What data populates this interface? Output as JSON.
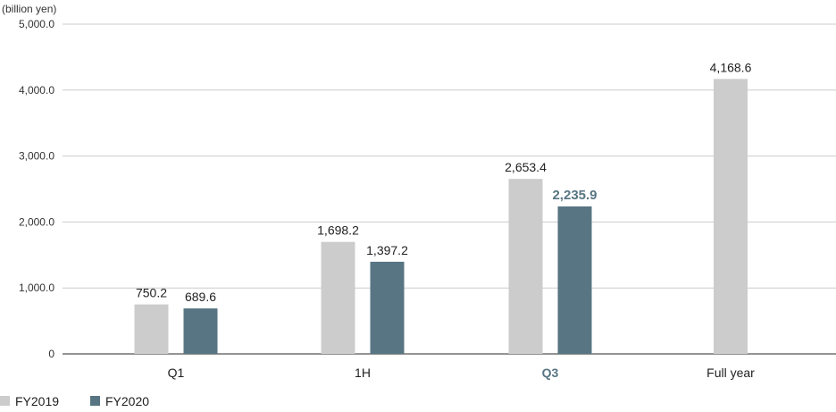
{
  "chart_data": {
    "type": "bar",
    "unit_label": "(billion yen)",
    "title": "",
    "xlabel": "",
    "ylabel": "",
    "categories": [
      "Q1",
      "1H",
      "Q3",
      "Full year"
    ],
    "highlight_category": "Q3",
    "series": [
      {
        "name": "FY2019",
        "color": "#cccccc",
        "values": [
          750.2,
          1698.2,
          2653.4,
          4168.6
        ],
        "labels": [
          "750.2",
          "1,698.2",
          "2,653.4",
          "4,168.6"
        ]
      },
      {
        "name": "FY2020",
        "color": "#587583",
        "values": [
          689.6,
          1397.2,
          2235.9,
          null
        ],
        "labels": [
          "689.6",
          "1,397.2",
          "2,235.9",
          ""
        ]
      }
    ],
    "highlight_label_color": "#587583",
    "ylim": [
      0,
      5000
    ],
    "yticks": [
      0,
      1000,
      2000,
      3000,
      4000,
      5000
    ],
    "ytick_labels": [
      "0",
      "1,000.0",
      "2,000.0",
      "3,000.0",
      "4,000.0",
      "5,000.0"
    ],
    "grid": true,
    "legend_position": "bottom-left"
  }
}
